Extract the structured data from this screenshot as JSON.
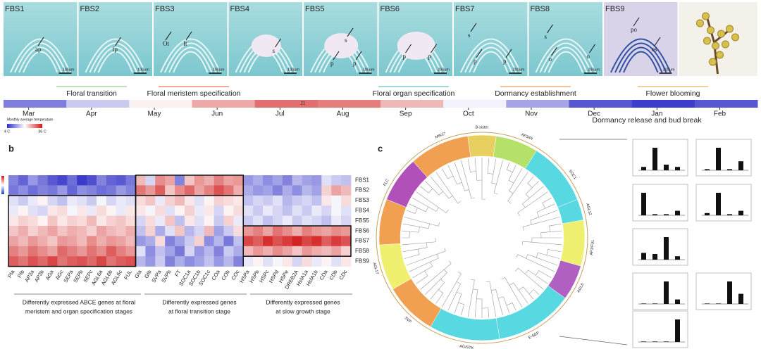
{
  "panel_a": {
    "panels": [
      {
        "label": "FBS1",
        "marks": [
          "ap"
        ],
        "scale": "100μm"
      },
      {
        "label": "FBS2",
        "marks": [
          "fp"
        ],
        "scale": "100μm"
      },
      {
        "label": "FBS3",
        "marks": [
          "Ot",
          "It"
        ],
        "scale": "100μm"
      },
      {
        "label": "FBS4",
        "marks": [
          "s"
        ],
        "scale": "100μm"
      },
      {
        "label": "FBS5",
        "marks": [
          "s",
          "p",
          "p"
        ],
        "scale": "100μm"
      },
      {
        "label": "FBS6",
        "marks": [
          "p",
          "p"
        ],
        "scale": "200μm"
      },
      {
        "label": "FBS7",
        "marks": [
          "s",
          "p",
          "p"
        ],
        "scale": "200μm"
      },
      {
        "label": "FBS8",
        "marks": [
          "s",
          "o",
          "o"
        ],
        "scale": "200μm"
      },
      {
        "label": "FBS9",
        "marks": [
          "po",
          "es"
        ],
        "scale": "200μm"
      }
    ],
    "stages": [
      "Floral transition",
      "Floral meristem specification",
      "Floral organ specification",
      "Dormancy establishment",
      "Flower blooming",
      "Dormancy release and bud break"
    ],
    "months": [
      "Mar",
      "Apr",
      "May",
      "Jun",
      "Jul",
      "Aug",
      "Sep",
      "Oct",
      "Nov",
      "Dec",
      "Jan",
      "Feb"
    ],
    "monthly_temperature": [
      10,
      16,
      21,
      26,
      30,
      29,
      25,
      19,
      13,
      7,
      5,
      7
    ],
    "bar_label": "21",
    "legend_title": "Monthly average temperature",
    "legend_ticks": [
      {
        "value": 4,
        "label": "4 C"
      },
      {
        "value": 36,
        "label": "36 C"
      }
    ]
  },
  "panel_b": {
    "label": "b",
    "rows": [
      "FBS1",
      "FBS2",
      "FBS3",
      "FBS4",
      "FBS5",
      "FBS6",
      "FBS7",
      "FBS8",
      "FBS9"
    ],
    "columns": [
      "PIa",
      "PIb",
      "AP3a",
      "AP3b",
      "AGa",
      "AGc",
      "SEPa",
      "SEPb",
      "SEPc",
      "AGL6a",
      "AGL6b",
      "AGL6c",
      "FUL",
      "GIa",
      "GIb",
      "SVPa",
      "SVPb",
      "FT",
      "SOC1a",
      "SOC1b",
      "SOC1c",
      "COa",
      "COb",
      "COc",
      "HSPa",
      "HSPb",
      "HSPc",
      "HSPd",
      "HSPe",
      "DREB2A",
      "HsfA1a",
      "HsfA1b",
      "CDa",
      "CDb",
      "CDc"
    ],
    "clim": [
      -2,
      2
    ],
    "values": [
      [
        -1.2,
        -1.5,
        -1.0,
        -1.3,
        -1.6,
        -1.8,
        -1.4,
        -1.9,
        -1.7,
        -1.2,
        -1.5,
        -1.6,
        -1.3,
        0.6,
        -0.4,
        1.0,
        0.8,
        -1.2,
        0.5,
        0.9,
        0.7,
        1.1,
        0.8,
        0.9,
        -1.0,
        -0.8,
        -1.1,
        -0.9,
        -1.2,
        -0.7,
        -0.9,
        -1.0,
        -0.3,
        -0.5,
        -0.6
      ],
      [
        -1.3,
        -1.1,
        -1.4,
        -1.2,
        -1.3,
        -1.0,
        -1.5,
        -1.1,
        -1.2,
        -1.4,
        -1.3,
        -1.0,
        -1.2,
        1.2,
        0.9,
        1.4,
        0.5,
        1.0,
        1.3,
        0.8,
        1.1,
        1.5,
        1.2,
        0.7,
        -0.8,
        -1.0,
        -0.9,
        -1.2,
        -0.8,
        -1.1,
        -0.7,
        -0.9,
        0.4,
        0.8,
        0.6
      ],
      [
        -0.3,
        -0.5,
        -0.2,
        0.1,
        -0.4,
        -0.6,
        -0.2,
        -0.3,
        -0.5,
        -0.1,
        -0.4,
        -0.2,
        -0.3,
        0.3,
        0.5,
        -0.2,
        0.4,
        0.6,
        0.2,
        -0.3,
        0.1,
        0.4,
        0.3,
        0.2,
        -0.6,
        -0.4,
        -0.5,
        -0.3,
        -0.7,
        -0.5,
        -0.4,
        -0.6,
        0.2,
        -0.1,
        0.3
      ],
      [
        -0.2,
        0.1,
        -0.3,
        -0.4,
        0.2,
        0.3,
        -0.1,
        0.2,
        -0.2,
        0.3,
        0.1,
        -0.2,
        0.2,
        0.2,
        -0.1,
        0.3,
        -0.3,
        0.1,
        0.4,
        -0.2,
        0.2,
        -0.4,
        0.1,
        0.3,
        -0.3,
        -0.5,
        -0.2,
        -0.4,
        -0.6,
        -0.3,
        -0.5,
        -0.2,
        -0.4,
        -0.1,
        -0.3
      ],
      [
        0.2,
        0.4,
        0.3,
        0.1,
        0.5,
        0.2,
        0.4,
        0.3,
        0.6,
        0.2,
        0.4,
        0.5,
        0.3,
        -0.4,
        0.3,
        -0.2,
        0.5,
        -0.6,
        0.2,
        -0.3,
        0.1,
        -0.5,
        0.4,
        -0.2,
        -0.5,
        -0.3,
        -0.6,
        -0.4,
        -0.2,
        -0.5,
        -0.3,
        -0.4,
        -0.6,
        -0.2,
        -0.4
      ],
      [
        0.5,
        0.7,
        0.4,
        0.6,
        0.8,
        0.5,
        0.7,
        0.6,
        0.4,
        0.8,
        0.6,
        0.5,
        0.7,
        -0.6,
        0.4,
        -0.8,
        -0.3,
        0.5,
        -0.7,
        -0.4,
        0.6,
        -0.9,
        -0.5,
        0.3,
        0.9,
        1.1,
        0.8,
        1.2,
        1.0,
        0.7,
        1.1,
        0.9,
        0.8,
        1.0,
        0.9
      ],
      [
        0.8,
        0.6,
        0.9,
        0.7,
        0.5,
        0.9,
        0.8,
        0.6,
        1.0,
        0.7,
        0.9,
        0.8,
        0.6,
        -1.0,
        -0.8,
        0.3,
        -1.2,
        -0.9,
        -0.5,
        0.4,
        -1.1,
        -0.7,
        -1.3,
        -0.6,
        1.6,
        1.4,
        1.8,
        1.5,
        1.7,
        1.9,
        1.6,
        1.8,
        1.4,
        1.7,
        1.5
      ],
      [
        1.1,
        0.9,
        1.2,
        1.0,
        0.8,
        1.3,
        1.1,
        0.9,
        1.2,
        1.0,
        1.4,
        1.1,
        0.9,
        -0.3,
        -1.1,
        -0.6,
        -0.9,
        -1.3,
        -0.4,
        -1.0,
        -0.7,
        -1.2,
        -0.5,
        -0.8,
        0.6,
        0.9,
        0.7,
        1.0,
        0.8,
        0.5,
        0.9,
        0.7,
        0.6,
        0.8,
        0.4
      ],
      [
        1.4,
        1.2,
        1.5,
        1.3,
        1.6,
        1.2,
        1.4,
        1.5,
        1.3,
        1.6,
        1.2,
        1.4,
        1.5,
        -0.7,
        -1.0,
        -0.5,
        -1.2,
        -0.8,
        -1.1,
        -0.9,
        -0.6,
        -1.0,
        -0.7,
        -1.2,
        -0.2,
        0.1,
        -0.3,
        -0.1,
        0.2,
        -0.4,
        0.3,
        -0.2,
        0.1,
        -0.3,
        0.2
      ]
    ],
    "captions": [
      [
        "Differently expressed ABCE genes  at floral",
        "meristem and organ specification stages"
      ],
      [
        "Differently expressed genes",
        "at floral transition stage"
      ],
      [
        "Differently expressed genes",
        "at slow growth stage"
      ]
    ]
  },
  "panel_c": {
    "label": "c",
    "clades": [
      "B-sister",
      "AP3/PI",
      "SOC1",
      "AGL12",
      "AP1/FUL",
      "AGL6",
      "E-SEP",
      "AG/STK",
      "SVP",
      "AGL17",
      "FLC",
      "MIKC*"
    ],
    "mini_charts": {
      "ylim": [
        0,
        1
      ],
      "values": [
        [
          0.15,
          1.0,
          0.25,
          0.15
        ],
        [
          0.05,
          1.0,
          0.05,
          0.4
        ],
        [
          1.0,
          0.05,
          0.05,
          0.2
        ],
        [
          0.1,
          1.0,
          0.05,
          0.2
        ],
        [
          0.3,
          0.25,
          1.0,
          0.15
        ],
        [
          0.02,
          0.02,
          1.0,
          0.2
        ],
        [
          0.02,
          0.02,
          1.0,
          0.45
        ],
        [
          0.02,
          0.02,
          0.02,
          1.0
        ]
      ]
    }
  }
}
